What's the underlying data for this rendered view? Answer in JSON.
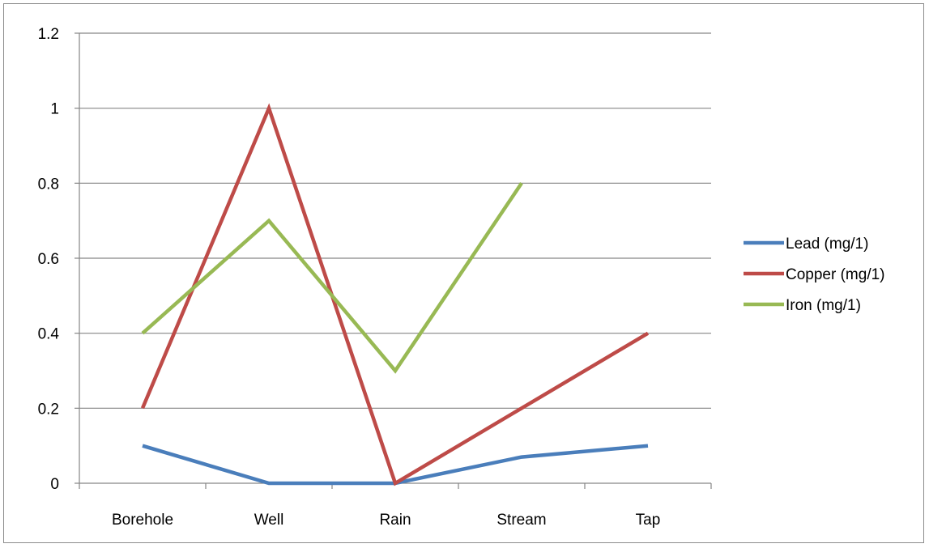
{
  "chart_data": {
    "type": "line",
    "categories": [
      "Borehole",
      "Well",
      "Rain",
      "Stream",
      "Tap"
    ],
    "series": [
      {
        "name": "Lead (mg/1)",
        "color": "#4a7ebb",
        "values": [
          0.1,
          0.0,
          0.0,
          0.07,
          0.1
        ]
      },
      {
        "name": "Copper (mg/1)",
        "color": "#be4b48",
        "values": [
          0.2,
          1.0,
          0.0,
          0.2,
          0.4
        ]
      },
      {
        "name": "Iron (mg/1)",
        "color": "#98b954",
        "values": [
          0.4,
          0.7,
          0.3,
          0.8,
          null
        ]
      }
    ],
    "y_ticks": [
      "0",
      "0.2",
      "0.4",
      "0.6",
      "0.8",
      "1",
      "1.2"
    ],
    "ylim": [
      0,
      1.2
    ],
    "title": "",
    "xlabel": "",
    "ylabel": "",
    "grid": true,
    "legend_position": "right"
  }
}
